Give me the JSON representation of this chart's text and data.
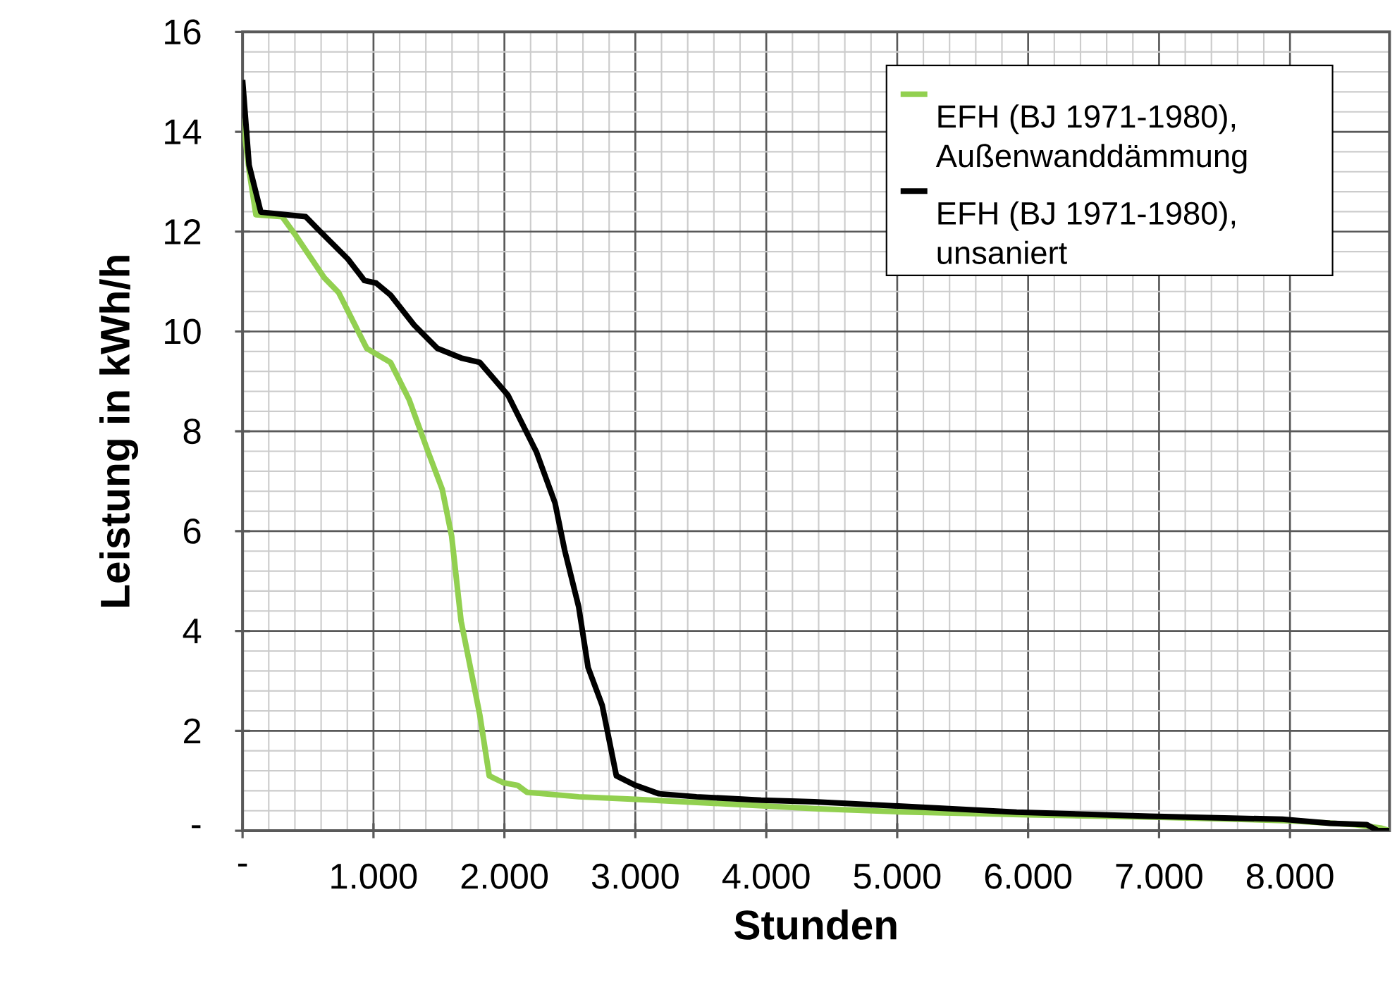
{
  "chart_data": {
    "type": "line",
    "xlabel": "Stunden",
    "ylabel": "Leistung  in kWh/h",
    "xlim": [
      0,
      8760
    ],
    "ylim": [
      0,
      16
    ],
    "xticks": [
      {
        "value": 0,
        "label": "-"
      },
      {
        "value": 1000,
        "label": "1.000"
      },
      {
        "value": 2000,
        "label": "2.000"
      },
      {
        "value": 3000,
        "label": "3.000"
      },
      {
        "value": 4000,
        "label": "4.000"
      },
      {
        "value": 5000,
        "label": "5.000"
      },
      {
        "value": 6000,
        "label": "6.000"
      },
      {
        "value": 7000,
        "label": "7.000"
      },
      {
        "value": 8000,
        "label": "8.000"
      }
    ],
    "yticks": [
      {
        "value": 0,
        "label": "-"
      },
      2,
      4,
      6,
      8,
      10,
      12,
      14,
      16
    ],
    "grid": true,
    "legend": "top right",
    "marker": "none",
    "line_style": "solid",
    "series": [
      {
        "name": "EFH (BJ 1971-1980), Außenwanddämmung",
        "color": "#92d050",
        "x": [
          0,
          50,
          102,
          302,
          410,
          626,
          734,
          841,
          949,
          1130,
          1273,
          1417,
          1525,
          1597,
          1669,
          1740,
          1812,
          1884,
          1992,
          2100,
          2172,
          2567,
          3000,
          4401,
          5000,
          6000,
          7000,
          8000,
          8500,
          8700,
          8760
        ],
        "values": [
          14.27,
          13.23,
          12.34,
          12.3,
          11.91,
          11.07,
          10.78,
          10.22,
          9.66,
          9.38,
          8.63,
          7.59,
          6.84,
          5.9,
          4.2,
          3.27,
          2.32,
          1.1,
          0.96,
          0.91,
          0.77,
          0.68,
          0.63,
          0.44,
          0.38,
          0.32,
          0.27,
          0.2,
          0.12,
          0.05,
          0
        ]
      },
      {
        "name": "EFH (BJ 1971-1980), unsaniert",
        "color": "#000000",
        "x": [
          0,
          50,
          140,
          482,
          590,
          805,
          931,
          1020,
          1130,
          1310,
          1489,
          1669,
          1812,
          2028,
          2244,
          2387,
          2460,
          2567,
          2639,
          2747,
          2855,
          3000,
          3180,
          3467,
          3961,
          4366,
          4895,
          5912,
          6926,
          7940,
          8306,
          8587,
          8671,
          8760
        ],
        "values": [
          15.04,
          13.33,
          12.39,
          12.3,
          12.01,
          11.45,
          11.02,
          10.97,
          10.73,
          10.13,
          9.66,
          9.47,
          9.38,
          8.72,
          7.59,
          6.56,
          5.62,
          4.49,
          3.27,
          2.51,
          1.1,
          0.91,
          0.74,
          0.68,
          0.61,
          0.58,
          0.51,
          0.37,
          0.29,
          0.23,
          0.15,
          0.12,
          0,
          0
        ]
      }
    ]
  }
}
